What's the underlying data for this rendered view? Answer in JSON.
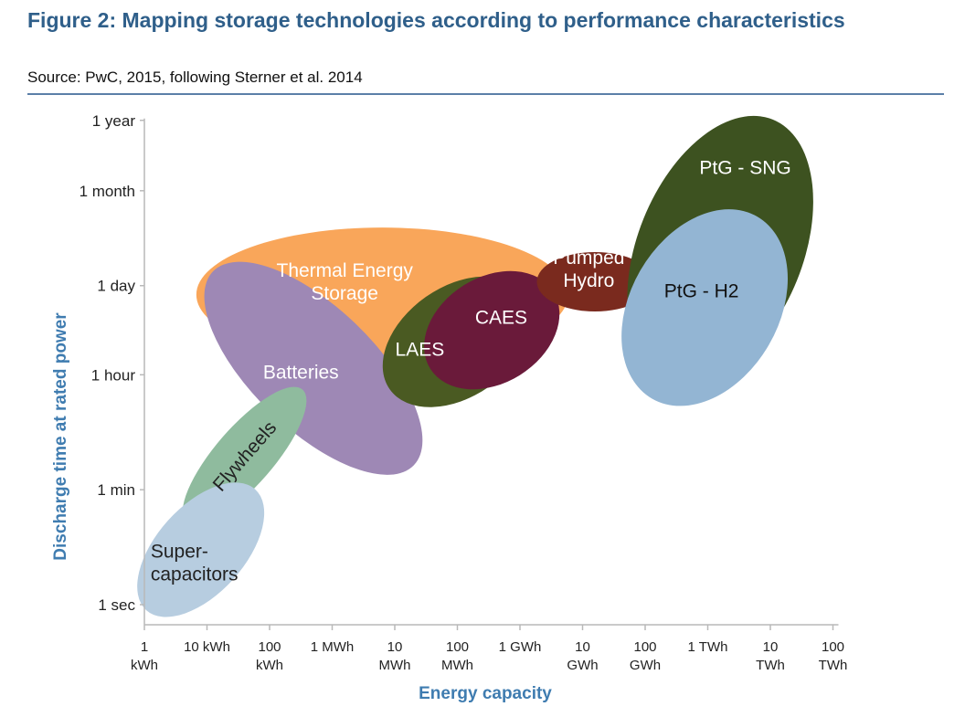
{
  "header": {
    "title": "Figure 2: Mapping storage technologies according to performance characteristics",
    "source": "Source: PwC, 2015, following Sterner et al. 2014"
  },
  "chart_data": {
    "type": "bubble-region",
    "xlabel": "Energy capacity",
    "ylabel": "Discharge time at rated power",
    "x_ticks": [
      {
        "v": 0,
        "lines": [
          "1",
          "kWh"
        ]
      },
      {
        "v": 1,
        "lines": [
          "10 kWh"
        ]
      },
      {
        "v": 2,
        "lines": [
          "100",
          "kWh"
        ]
      },
      {
        "v": 3,
        "lines": [
          "1 MWh"
        ]
      },
      {
        "v": 4,
        "lines": [
          "10",
          "MWh"
        ]
      },
      {
        "v": 5,
        "lines": [
          "100",
          "MWh"
        ]
      },
      {
        "v": 6,
        "lines": [
          "1 GWh"
        ]
      },
      {
        "v": 7,
        "lines": [
          "10",
          "GWh"
        ]
      },
      {
        "v": 8,
        "lines": [
          "100",
          "GWh"
        ]
      },
      {
        "v": 9,
        "lines": [
          "1 TWh"
        ]
      },
      {
        "v": 10,
        "lines": [
          "10",
          "TWh"
        ]
      },
      {
        "v": 11,
        "lines": [
          "100",
          "TWh"
        ]
      }
    ],
    "y_ticks": [
      {
        "v": 0,
        "label": "1 sec"
      },
      {
        "v": 1.78,
        "label": "1 min"
      },
      {
        "v": 3.56,
        "label": "1 hour"
      },
      {
        "v": 4.94,
        "label": "1 day"
      },
      {
        "v": 6.41,
        "label": "1 month"
      },
      {
        "v": 7.5,
        "label": "1 year"
      }
    ],
    "regions": [
      {
        "name": "Thermal Energy Storage",
        "label_lines": [
          "Thermal Energy",
          "Storage"
        ],
        "color": "#f9a65a",
        "text_color": "#ffffff",
        "cx": 3.8,
        "cy": 4.8,
        "rx": 2.97,
        "ry": 1.04,
        "angle": 0,
        "label_x": 3.2,
        "label_y": 5.0,
        "label_angle": 0,
        "label_anchor": "middle"
      },
      {
        "name": "Batteries",
        "label_lines": [
          "Batteries"
        ],
        "color": "#9e88b5",
        "text_color": "#ffffff",
        "cx": 2.7,
        "cy": 3.66,
        "rx": 2.23,
        "ry": 0.95,
        "angle": 44,
        "label_x": 2.5,
        "label_y": 3.6,
        "label_angle": 0,
        "label_anchor": "middle"
      },
      {
        "name": "Flywheels",
        "label_lines": [
          "Flywheels"
        ],
        "color": "#8fbb9e",
        "text_color": "#222222",
        "cx": 1.6,
        "cy": 2.3,
        "rx": 1.41,
        "ry": 0.45,
        "angle": -49,
        "label_x": 1.6,
        "label_y": 2.3,
        "label_angle": -49,
        "label_anchor": "middle"
      },
      {
        "name": "Super-capacitors",
        "label_lines": [
          "Super-",
          "capacitors"
        ],
        "color": "#b7cde0",
        "text_color": "#222222",
        "cx": 0.9,
        "cy": 0.85,
        "rx": 1.3,
        "ry": 0.68,
        "angle": -48,
        "label_x": 0.1,
        "label_y": 0.65,
        "label_angle": 0,
        "label_anchor": "start"
      },
      {
        "name": "LAES",
        "label_lines": [
          "LAES"
        ],
        "color": "#4a5a22",
        "text_color": "#ffffff",
        "cx": 5.0,
        "cy": 4.07,
        "rx": 1.32,
        "ry": 0.85,
        "angle": -35,
        "label_x": 4.4,
        "label_y": 3.95,
        "label_angle": 0,
        "label_anchor": "middle"
      },
      {
        "name": "CAES",
        "label_lines": [
          "CAES"
        ],
        "color": "#6a1a3a",
        "text_color": "#ffffff",
        "cx": 5.55,
        "cy": 4.25,
        "rx": 1.16,
        "ry": 0.82,
        "angle": -32,
        "label_x": 5.7,
        "label_y": 4.45,
        "label_angle": 0,
        "label_anchor": "middle"
      },
      {
        "name": "Pumped Hydro",
        "label_lines": [
          "Pumped",
          "Hydro"
        ],
        "color": "#7a2a1e",
        "text_color": "#ffffff",
        "cx": 7.2,
        "cy": 5.0,
        "rx": 0.93,
        "ry": 0.46,
        "angle": 0,
        "label_x": 7.1,
        "label_y": 5.2,
        "label_angle": 0,
        "label_anchor": "middle"
      },
      {
        "name": "PtG - SNG",
        "label_lines": [
          "PtG - SNG"
        ],
        "color": "#3d5220",
        "text_color": "#ffffff",
        "cx": 9.2,
        "cy": 5.5,
        "rx": 2.24,
        "ry": 1.28,
        "angle": -68,
        "label_x": 9.6,
        "label_y": 6.77,
        "label_angle": 0,
        "label_anchor": "middle"
      },
      {
        "name": "PtG - H2",
        "label_lines": [
          "PtG - H2"
        ],
        "color": "#93b5d3",
        "text_color": "#111111",
        "cx": 8.95,
        "cy": 4.6,
        "rx": 1.68,
        "ry": 1.15,
        "angle": -60,
        "label_x": 8.9,
        "label_y": 4.86,
        "label_angle": 0,
        "label_anchor": "middle"
      }
    ]
  }
}
